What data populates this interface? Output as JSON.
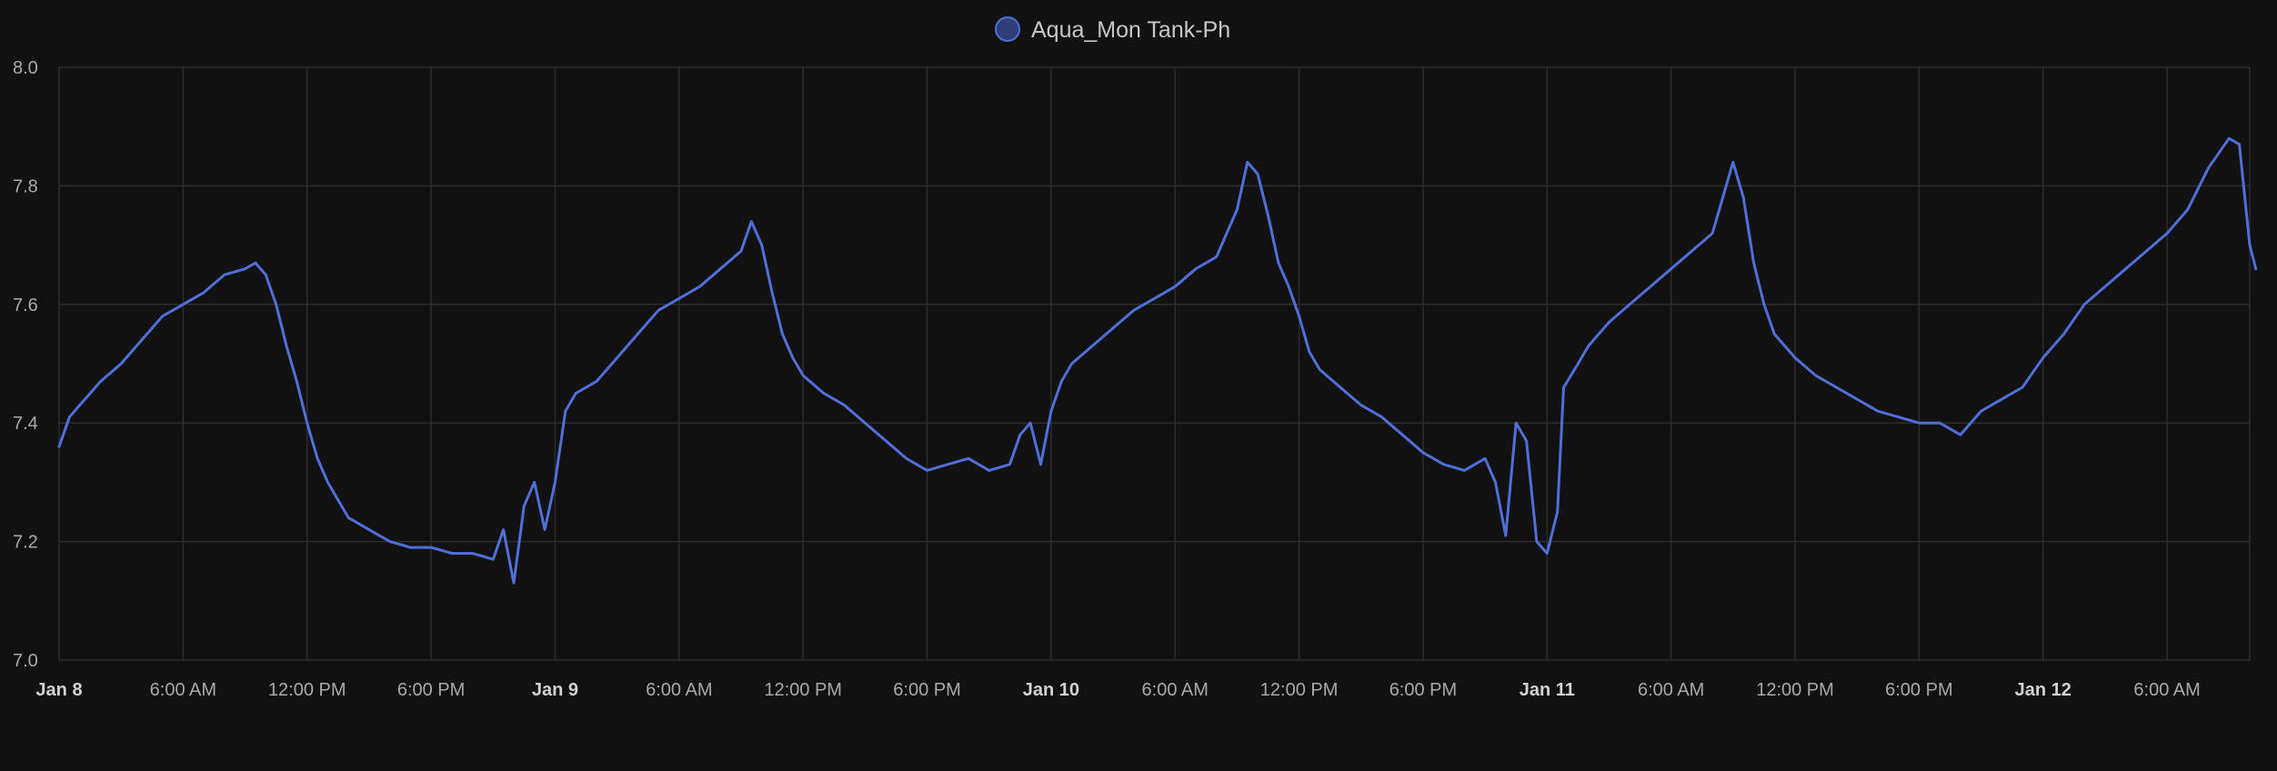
{
  "accent_color": "#4f6fd6",
  "chart_data": {
    "type": "line",
    "legend_position": "top-center",
    "grid": true,
    "ylim": [
      7.0,
      8.0
    ],
    "y_ticks": [
      "7.0",
      "7.2",
      "7.4",
      "7.6",
      "7.8",
      "8.0"
    ],
    "x_ticks": [
      {
        "label": "Jan 8",
        "hours": 0,
        "major": true
      },
      {
        "label": "6:00 AM",
        "hours": 6
      },
      {
        "label": "12:00 PM",
        "hours": 12
      },
      {
        "label": "6:00 PM",
        "hours": 18
      },
      {
        "label": "Jan 9",
        "hours": 24,
        "major": true
      },
      {
        "label": "6:00 AM",
        "hours": 30
      },
      {
        "label": "12:00 PM",
        "hours": 36
      },
      {
        "label": "6:00 PM",
        "hours": 42
      },
      {
        "label": "Jan 10",
        "hours": 48,
        "major": true
      },
      {
        "label": "6:00 AM",
        "hours": 54
      },
      {
        "label": "12:00 PM",
        "hours": 60
      },
      {
        "label": "6:00 PM",
        "hours": 66
      },
      {
        "label": "Jan 11",
        "hours": 72,
        "major": true
      },
      {
        "label": "6:00 AM",
        "hours": 78
      },
      {
        "label": "12:00 PM",
        "hours": 84
      },
      {
        "label": "6:00 PM",
        "hours": 90
      },
      {
        "label": "Jan 12",
        "hours": 96,
        "major": true
      },
      {
        "label": "6:00 AM",
        "hours": 102
      }
    ],
    "xlim_hours": [
      0,
      106
    ],
    "series": [
      {
        "name": "Aqua_Mon Tank-Ph",
        "color": "#4f6fd6",
        "points": [
          [
            0,
            7.36
          ],
          [
            0.5,
            7.41
          ],
          [
            1,
            7.43
          ],
          [
            2,
            7.47
          ],
          [
            3,
            7.5
          ],
          [
            4,
            7.54
          ],
          [
            5,
            7.58
          ],
          [
            6,
            7.6
          ],
          [
            7,
            7.62
          ],
          [
            8,
            7.65
          ],
          [
            9,
            7.66
          ],
          [
            9.5,
            7.67
          ],
          [
            10,
            7.65
          ],
          [
            10.5,
            7.6
          ],
          [
            11,
            7.53
          ],
          [
            11.5,
            7.47
          ],
          [
            12,
            7.4
          ],
          [
            12.5,
            7.34
          ],
          [
            13,
            7.3
          ],
          [
            14,
            7.24
          ],
          [
            15,
            7.22
          ],
          [
            16,
            7.2
          ],
          [
            17,
            7.19
          ],
          [
            18,
            7.19
          ],
          [
            19,
            7.18
          ],
          [
            20,
            7.18
          ],
          [
            21,
            7.17
          ],
          [
            21.5,
            7.22
          ],
          [
            22,
            7.13
          ],
          [
            22.5,
            7.26
          ],
          [
            23,
            7.3
          ],
          [
            23.5,
            7.22
          ],
          [
            24,
            7.3
          ],
          [
            24.5,
            7.42
          ],
          [
            25,
            7.45
          ],
          [
            26,
            7.47
          ],
          [
            27,
            7.51
          ],
          [
            28,
            7.55
          ],
          [
            29,
            7.59
          ],
          [
            30,
            7.61
          ],
          [
            31,
            7.63
          ],
          [
            32,
            7.66
          ],
          [
            33,
            7.69
          ],
          [
            33.5,
            7.74
          ],
          [
            34,
            7.7
          ],
          [
            34.5,
            7.62
          ],
          [
            35,
            7.55
          ],
          [
            35.5,
            7.51
          ],
          [
            36,
            7.48
          ],
          [
            37,
            7.45
          ],
          [
            38,
            7.43
          ],
          [
            39,
            7.4
          ],
          [
            40,
            7.37
          ],
          [
            41,
            7.34
          ],
          [
            42,
            7.32
          ],
          [
            43,
            7.33
          ],
          [
            44,
            7.34
          ],
          [
            45,
            7.32
          ],
          [
            46,
            7.33
          ],
          [
            46.5,
            7.38
          ],
          [
            47,
            7.4
          ],
          [
            47.5,
            7.33
          ],
          [
            48,
            7.42
          ],
          [
            48.5,
            7.47
          ],
          [
            49,
            7.5
          ],
          [
            50,
            7.53
          ],
          [
            51,
            7.56
          ],
          [
            52,
            7.59
          ],
          [
            53,
            7.61
          ],
          [
            54,
            7.63
          ],
          [
            55,
            7.66
          ],
          [
            56,
            7.68
          ],
          [
            56.5,
            7.72
          ],
          [
            57,
            7.76
          ],
          [
            57.5,
            7.84
          ],
          [
            58,
            7.82
          ],
          [
            58.5,
            7.75
          ],
          [
            59,
            7.67
          ],
          [
            59.5,
            7.63
          ],
          [
            60,
            7.58
          ],
          [
            60.5,
            7.52
          ],
          [
            61,
            7.49
          ],
          [
            62,
            7.46
          ],
          [
            63,
            7.43
          ],
          [
            64,
            7.41
          ],
          [
            65,
            7.38
          ],
          [
            66,
            7.35
          ],
          [
            67,
            7.33
          ],
          [
            68,
            7.32
          ],
          [
            69,
            7.34
          ],
          [
            69.5,
            7.3
          ],
          [
            70,
            7.21
          ],
          [
            70.5,
            7.4
          ],
          [
            71,
            7.37
          ],
          [
            71.5,
            7.2
          ],
          [
            72,
            7.18
          ],
          [
            72.5,
            7.25
          ],
          [
            72.8,
            7.46
          ],
          [
            73.5,
            7.5
          ],
          [
            74,
            7.53
          ],
          [
            75,
            7.57
          ],
          [
            76,
            7.6
          ],
          [
            77,
            7.63
          ],
          [
            78,
            7.66
          ],
          [
            79,
            7.69
          ],
          [
            80,
            7.72
          ],
          [
            80.5,
            7.78
          ],
          [
            81,
            7.84
          ],
          [
            81.5,
            7.78
          ],
          [
            82,
            7.67
          ],
          [
            82.5,
            7.6
          ],
          [
            83,
            7.55
          ],
          [
            84,
            7.51
          ],
          [
            85,
            7.48
          ],
          [
            86,
            7.46
          ],
          [
            87,
            7.44
          ],
          [
            88,
            7.42
          ],
          [
            89,
            7.41
          ],
          [
            90,
            7.4
          ],
          [
            91,
            7.4
          ],
          [
            92,
            7.38
          ],
          [
            93,
            7.42
          ],
          [
            94,
            7.44
          ],
          [
            95,
            7.46
          ],
          [
            96,
            7.51
          ],
          [
            97,
            7.55
          ],
          [
            98,
            7.6
          ],
          [
            99,
            7.63
          ],
          [
            100,
            7.66
          ],
          [
            101,
            7.69
          ],
          [
            102,
            7.72
          ],
          [
            103,
            7.76
          ],
          [
            104,
            7.83
          ],
          [
            105,
            7.88
          ],
          [
            105.5,
            7.87
          ],
          [
            106,
            7.7
          ],
          [
            106.3,
            7.66
          ]
        ]
      }
    ]
  }
}
